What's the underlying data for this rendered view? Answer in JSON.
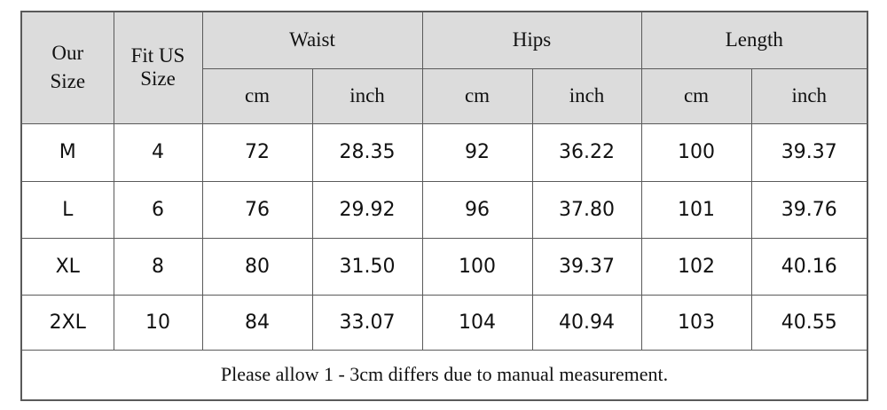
{
  "table": {
    "header": {
      "our_size": "Our Size",
      "fit_us_size": "Fit US Size",
      "groups": [
        "Waist",
        "Hips",
        "Length"
      ],
      "units": [
        "cm",
        "inch",
        "cm",
        "inch",
        "cm",
        "inch"
      ]
    },
    "rows": [
      [
        "M",
        "4",
        "72",
        "28.35",
        "92",
        "36.22",
        "100",
        "39.37"
      ],
      [
        "L",
        "6",
        "76",
        "29.92",
        "96",
        "37.80",
        "101",
        "39.76"
      ],
      [
        "XL",
        "8",
        "80",
        "31.50",
        "100",
        "39.37",
        "102",
        "40.16"
      ],
      [
        "2XL",
        "10",
        "84",
        "33.07",
        "104",
        "40.94",
        "103",
        "40.55"
      ]
    ],
    "note": "Please allow 1 - 3cm differs due to manual measurement."
  }
}
